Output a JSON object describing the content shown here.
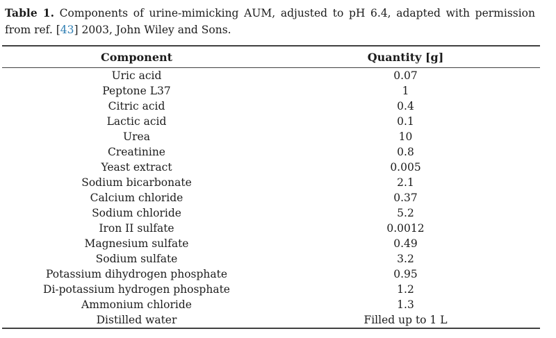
{
  "caption": {
    "label": "Table 1.",
    "body": "Components of urine-mimicking AUM, adjusted to pH 6.4, adapted with permission from ref.",
    "ref_open": "[",
    "ref_number": "43",
    "ref_close": "]",
    "tail": "2003, John Wiley and Sons."
  },
  "colors": {
    "text": "#1c1c1c",
    "rule": "#404040",
    "link_blue": "#2e7eb3"
  },
  "table": {
    "headers": {
      "component": "Component",
      "quantity": "Quantity [g]"
    },
    "rows": [
      {
        "component": "Uric acid",
        "quantity": "0.07"
      },
      {
        "component": "Peptone L37",
        "quantity": "1"
      },
      {
        "component": "Citric acid",
        "quantity": "0.4"
      },
      {
        "component": "Lactic acid",
        "quantity": "0.1"
      },
      {
        "component": "Urea",
        "quantity": "10"
      },
      {
        "component": "Creatinine",
        "quantity": "0.8"
      },
      {
        "component": "Yeast extract",
        "quantity": "0.005"
      },
      {
        "component": "Sodium bicarbonate",
        "quantity": "2.1"
      },
      {
        "component": "Calcium chloride",
        "quantity": "0.37"
      },
      {
        "component": "Sodium chloride",
        "quantity": "5.2"
      },
      {
        "component": "Iron II sulfate",
        "quantity": "0.0012"
      },
      {
        "component": "Magnesium sulfate",
        "quantity": "0.49"
      },
      {
        "component": "Sodium sulfate",
        "quantity": "3.2"
      },
      {
        "component": "Potassium dihydrogen phosphate",
        "quantity": "0.95"
      },
      {
        "component": "Di-potassium hydrogen phosphate",
        "quantity": "1.2"
      },
      {
        "component": "Ammonium chloride",
        "quantity": "1.3"
      },
      {
        "component": "Distilled water",
        "quantity": "Filled up to 1 L"
      }
    ]
  }
}
